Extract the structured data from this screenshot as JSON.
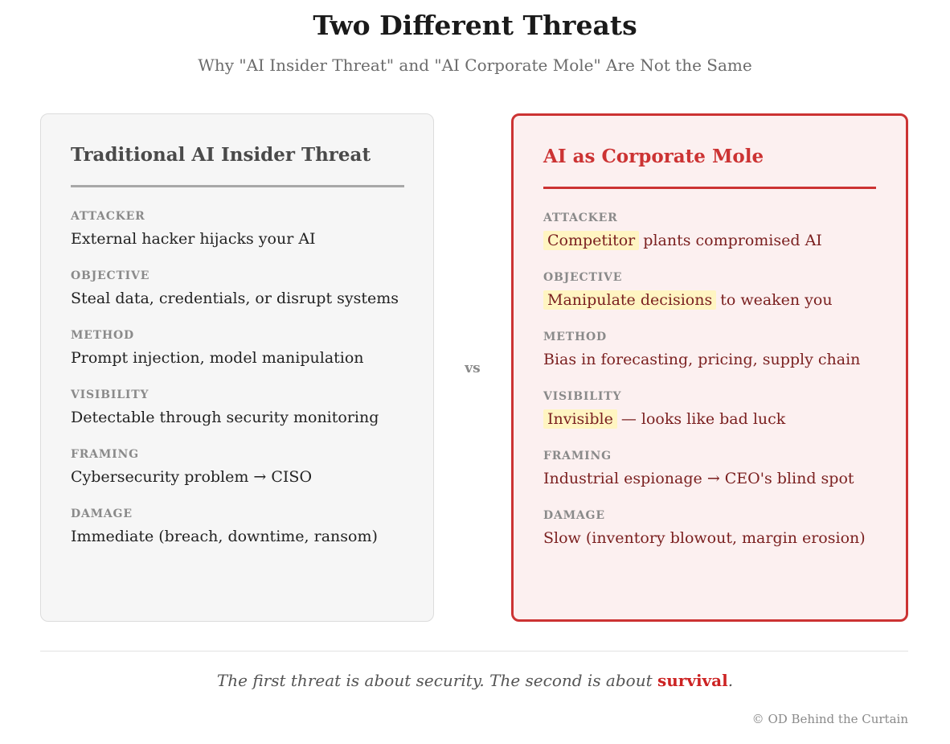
{
  "header": {
    "title": "Two Different Threats",
    "subtitle": "Why \"AI Insider Threat\" and \"AI Corporate Mole\" Are Not the Same"
  },
  "left_card": {
    "title": "Traditional AI Insider Threat",
    "rows": [
      {
        "label": "ATTACKER",
        "value": "External hacker hijacks your AI"
      },
      {
        "label": "OBJECTIVE",
        "value": "Steal data, credentials, or disrupt systems"
      },
      {
        "label": "METHOD",
        "value": "Prompt injection, model manipulation"
      },
      {
        "label": "VISIBILITY",
        "value": "Detectable through security monitoring"
      },
      {
        "label": "FRAMING",
        "value": "Cybersecurity problem → CISO"
      },
      {
        "label": "DAMAGE",
        "value": "Immediate (breach, downtime, ransom)"
      }
    ]
  },
  "vs_label": "vs",
  "right_card": {
    "title": "AI as Corporate Mole",
    "rows": [
      {
        "label": "ATTACKER",
        "highlight": "Competitor",
        "value": "plants compromised AI"
      },
      {
        "label": "OBJECTIVE",
        "highlight": "Manipulate decisions",
        "value": "to weaken you"
      },
      {
        "label": "METHOD",
        "highlight": "",
        "value": "Bias in forecasting, pricing, supply chain"
      },
      {
        "label": "VISIBILITY",
        "highlight": "Invisible",
        "value": "— looks like bad luck"
      },
      {
        "label": "FRAMING",
        "highlight": "",
        "value": "Industrial espionage → CEO's blind spot"
      },
      {
        "label": "DAMAGE",
        "highlight": "",
        "value": "Slow (inventory blowout, margin erosion)"
      }
    ]
  },
  "tagline": {
    "prefix": "The first threat is about security. The second is about",
    "emphasis": "survival",
    "suffix": "."
  },
  "footer": {
    "copyright": "© OD Behind the Curtain"
  },
  "colors": {
    "accent_red": "#cc3333",
    "highlight_yellow": "#fff5c2",
    "left_card_bg": "#f6f6f6",
    "right_card_bg": "#fcf0f0"
  }
}
